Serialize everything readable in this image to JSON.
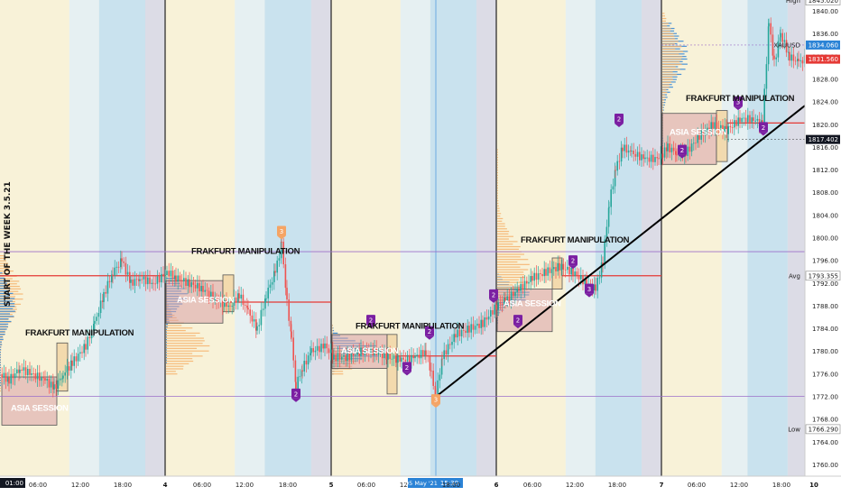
{
  "chart_data": {
    "type": "line",
    "symbol": "XAUUSD",
    "vertical_title": "START OF THE WEEK 3.5.21",
    "y_axis": {
      "min": 1758,
      "max": 1842,
      "ticks": [
        "1760.00",
        "1764.00",
        "1768.00",
        "1772.00",
        "1776.00",
        "1780.00",
        "1784.00",
        "1788.00",
        "1792.00",
        "1796.00",
        "1800.00",
        "1804.00",
        "1808.00",
        "1812.00",
        "1816.00",
        "1820.00",
        "1824.00",
        "1828.00",
        "1832.00",
        "1836.00",
        "1840.00"
      ],
      "unit": "USD"
    },
    "x_ticks": [
      "06:00",
      "12:00",
      "18:00",
      "4",
      "06:00",
      "12:00",
      "18:00",
      "5",
      "06:00",
      "12:00",
      "15:30",
      "18:00",
      "6",
      "06:00",
      "12:00",
      "18:00",
      "7",
      "06:00",
      "12:00",
      "18:00",
      "10"
    ],
    "x_left_label": "01:00",
    "x_highlight_label": "05 May '21",
    "price_labels": [
      {
        "text": "High",
        "value": "1845.020",
        "price": 1841.9
      },
      {
        "text": "XAUUSD",
        "value": "1834.060",
        "price": 1834.06
      },
      {
        "text": "",
        "value": "1831.560",
        "price": 1831.56
      },
      {
        "text": "",
        "value": "1817.402",
        "price": 1817.4
      },
      {
        "text": "Avg",
        "value": "1793.355",
        "price": 1793.355
      },
      {
        "text": "Low",
        "value": "1766.290",
        "price": 1766.29
      }
    ],
    "price_series": [
      {
        "t": 0,
        "p": 1776
      },
      {
        "t": 10,
        "p": 1775
      },
      {
        "t": 22,
        "p": 1777
      },
      {
        "t": 35,
        "p": 1776
      },
      {
        "t": 50,
        "p": 1775
      },
      {
        "t": 60,
        "p": 1773.5
      },
      {
        "t": 70,
        "p": 1776
      },
      {
        "t": 80,
        "p": 1778
      },
      {
        "t": 95,
        "p": 1781
      },
      {
        "t": 105,
        "p": 1785
      },
      {
        "t": 115,
        "p": 1790
      },
      {
        "t": 125,
        "p": 1794
      },
      {
        "t": 135,
        "p": 1796
      },
      {
        "t": 145,
        "p": 1792
      },
      {
        "t": 155,
        "p": 1793
      },
      {
        "t": 170,
        "p": 1792
      },
      {
        "t": 185,
        "p": 1794
      },
      {
        "t": 195,
        "p": 1793
      },
      {
        "t": 210,
        "p": 1792
      },
      {
        "t": 225,
        "p": 1791
      },
      {
        "t": 240,
        "p": 1789
      },
      {
        "t": 255,
        "p": 1788
      },
      {
        "t": 265,
        "p": 1790
      },
      {
        "t": 275,
        "p": 1787
      },
      {
        "t": 285,
        "p": 1784
      },
      {
        "t": 295,
        "p": 1790
      },
      {
        "t": 305,
        "p": 1794
      },
      {
        "t": 312,
        "p": 1799
      },
      {
        "t": 318,
        "p": 1789
      },
      {
        "t": 323,
        "p": 1782
      },
      {
        "t": 328,
        "p": 1774
      },
      {
        "t": 335,
        "p": 1777
      },
      {
        "t": 345,
        "p": 1780
      },
      {
        "t": 360,
        "p": 1781
      },
      {
        "t": 370,
        "p": 1779
      },
      {
        "t": 385,
        "p": 1779
      },
      {
        "t": 400,
        "p": 1780
      },
      {
        "t": 415,
        "p": 1780
      },
      {
        "t": 430,
        "p": 1779
      },
      {
        "t": 445,
        "p": 1778.5
      },
      {
        "t": 460,
        "p": 1779
      },
      {
        "t": 472,
        "p": 1780
      },
      {
        "t": 478,
        "p": 1776
      },
      {
        "t": 483,
        "p": 1772
      },
      {
        "t": 490,
        "p": 1779
      },
      {
        "t": 505,
        "p": 1783
      },
      {
        "t": 520,
        "p": 1784
      },
      {
        "t": 535,
        "p": 1785
      },
      {
        "t": 550,
        "p": 1788
      },
      {
        "t": 560,
        "p": 1789
      },
      {
        "t": 575,
        "p": 1791
      },
      {
        "t": 590,
        "p": 1793
      },
      {
        "t": 605,
        "p": 1794
      },
      {
        "t": 620,
        "p": 1795
      },
      {
        "t": 635,
        "p": 1794
      },
      {
        "t": 650,
        "p": 1792
      },
      {
        "t": 660,
        "p": 1791
      },
      {
        "t": 668,
        "p": 1796
      },
      {
        "t": 675,
        "p": 1806
      },
      {
        "t": 682,
        "p": 1812
      },
      {
        "t": 690,
        "p": 1816
      },
      {
        "t": 700,
        "p": 1815
      },
      {
        "t": 715,
        "p": 1814
      },
      {
        "t": 730,
        "p": 1814
      },
      {
        "t": 740,
        "p": 1816
      },
      {
        "t": 750,
        "p": 1815
      },
      {
        "t": 760,
        "p": 1815
      },
      {
        "t": 775,
        "p": 1818
      },
      {
        "t": 790,
        "p": 1820
      },
      {
        "t": 805,
        "p": 1819
      },
      {
        "t": 820,
        "p": 1821
      },
      {
        "t": 835,
        "p": 1821
      },
      {
        "t": 845,
        "p": 1820
      },
      {
        "t": 852,
        "p": 1838
      },
      {
        "t": 858,
        "p": 1831
      },
      {
        "t": 865,
        "p": 1836
      },
      {
        "t": 875,
        "p": 1832
      },
      {
        "t": 885,
        "p": 1831
      },
      {
        "t": 892,
        "p": 1831.56
      }
    ],
    "annotations": [
      "FRAKFURT MANIPULATION",
      "FRAKFURT MANIPULATION",
      "FRAKFURT MANIPULATION",
      "FRAKFURT MANIPULATION",
      "FRAKFURT MANIPULATION"
    ],
    "asia_labels": [
      "ASIA SESSION",
      "ASIA SESSION",
      "ASIA SESSION",
      "ASIA SESSION",
      "ASIA SESSION"
    ],
    "markers": [
      "3",
      "2",
      "2",
      "2",
      "3",
      "2",
      "2",
      "2",
      "2",
      "3",
      "2",
      "2",
      "3",
      "2"
    ],
    "levels": [
      1793.355,
      1788.7,
      1779.2,
      1820.3
    ],
    "purple_levels": [
      1797.6,
      1772.1
    ],
    "trendline": {
      "from": {
        "t": 483,
        "p": 1772
      },
      "to": {
        "t": 905,
        "p": 1825
      }
    },
    "colors": {
      "up": "#26a69a",
      "down": "#ef5350",
      "level": "#e53935",
      "trend": "#000000",
      "marker": "#7b1fa2",
      "marker_orange": "#f5a465",
      "profile_blue": "#2b83d6",
      "profile_orange": "#f6b26b",
      "zone": "#d8a0a8",
      "manip_zone": "#f2d7a8"
    }
  }
}
